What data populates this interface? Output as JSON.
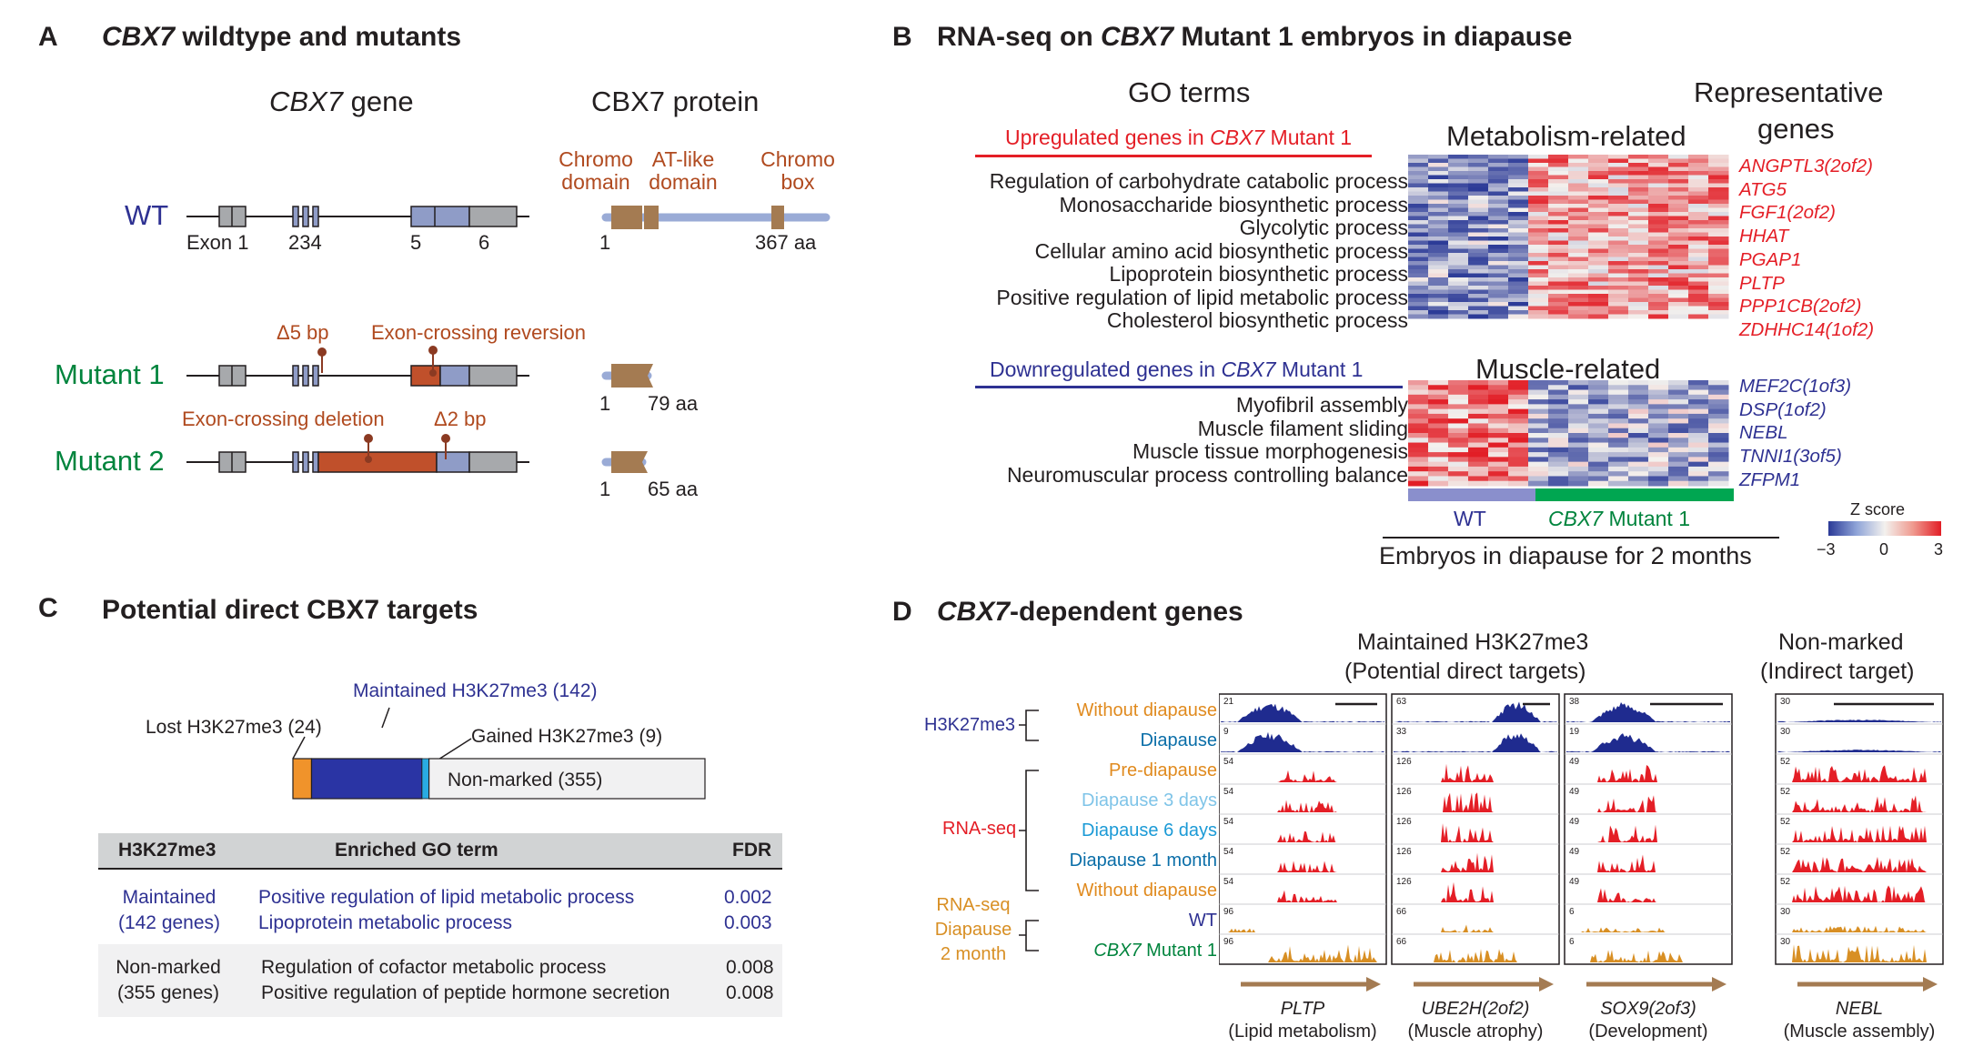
{
  "colors": {
    "red": "#e41e26",
    "blue": "#2e3192",
    "green": "#00843d",
    "brown": "#b04a1f",
    "exon_gray": "#a7a9ac",
    "exon_blue": "#8f9cc7",
    "protein_line": "#9aabd6",
    "domain": "#a47b52",
    "orange": "#e08a1e",
    "cyan": "#1b9ad6",
    "light_blue": "#7fc4e8",
    "navy": "#1f2b8f",
    "track_orange": "#d88f24"
  },
  "panelA": {
    "letter": "A",
    "title_italic": "CBX7",
    "title_rest": " wildtype and mutants",
    "gene_header_italic": "CBX7",
    "gene_header_rest": " gene",
    "protein_header": "CBX7 protein",
    "domains": [
      "Chromo\ndomain",
      "AT-like\ndomain",
      "Chromo\nbox"
    ],
    "wt_label": "WT",
    "exon_labels": [
      "Exon 1",
      "234",
      "5",
      "6"
    ],
    "wt_protein_start": "1",
    "wt_protein_end": "367 aa",
    "mut1_label": "Mutant 1",
    "mut1_del": "Δ5 bp",
    "mut1_rev": "Exon-crossing reversion",
    "mut1_start": "1",
    "mut1_end": "79 aa",
    "mut2_label": "Mutant 2",
    "mut2_del": "Exon-crossing deletion",
    "mut2_del2": "Δ2 bp",
    "mut2_start": "1",
    "mut2_end": "65 aa"
  },
  "panelB": {
    "letter": "B",
    "title_pre": "RNA-seq on ",
    "title_italic": "CBX7",
    "title_post": " Mutant 1 embryos in diapause",
    "go_header": "GO terms",
    "rep_header_1": "Representative",
    "rep_header_2": "genes",
    "up_label_pre": "Upregulated genes in ",
    "up_label_italic": "CBX7",
    "up_label_post": " Mutant 1",
    "down_label_pre": "Downregulated genes in ",
    "down_label_italic": "CBX7",
    "down_label_post": " Mutant 1",
    "metab_header": "Metabolism-related",
    "muscle_header": "Muscle-related",
    "up_terms": [
      "Regulation of carbohydrate catabolic process",
      "Monosaccharide biosynthetic process",
      "Glycolytic process",
      "Cellular amino acid biosynthetic process",
      "Lipoprotein biosynthetic process",
      "Positive regulation of lipid metabolic process",
      "Cholesterol biosynthetic process"
    ],
    "down_terms": [
      "Myofibril assembly",
      "Muscle filament sliding",
      "Muscle tissue morphogenesis",
      "Neuromuscular process controlling balance"
    ],
    "up_genes": [
      "ANGPTL3(2of2)",
      "ATG5",
      "FGF1(2of2)",
      "HHAT",
      "PGAP1",
      "PLTP",
      "PPP1CB(2of2)",
      "ZDHHC14(1of2)"
    ],
    "down_genes": [
      "MEF2C(1of3)",
      "DSP(1of2)",
      "NEBL",
      "TNNI1(3of5)",
      "ZFPM1"
    ],
    "wt_group": "WT",
    "mut_group_italic": "CBX7",
    "mut_group_rest": " Mutant 1",
    "embryo_label": "Embryos in diapause for 2 months",
    "zscore_label": "Z score",
    "zscore_ticks": [
      "−3",
      "0",
      "3"
    ]
  },
  "panelC": {
    "letter": "C",
    "title": "Potential direct CBX7 targets",
    "bar": {
      "maintained_label": "Maintained H3K27me3 (142)",
      "lost_label": "Lost H3K27me3 (24)",
      "gained_label": "Gained H3K27me3 (9)",
      "nonmarked_label": "Non-marked (355)",
      "counts": {
        "lost": 24,
        "maintained": 142,
        "gained": 9,
        "nonmarked": 355
      }
    },
    "table": {
      "headers": [
        "H3K27me3",
        "Enriched GO term",
        "FDR"
      ],
      "rows": [
        {
          "group": [
            "Maintained",
            "(142 genes)"
          ],
          "terms": [
            "Positive regulation of lipid metabolic process",
            "Lipoprotein metabolic process"
          ],
          "fdr": [
            "0.002",
            "0.003"
          ]
        },
        {
          "group": [
            "Non-marked",
            "(355 genes)"
          ],
          "terms": [
            "Regulation of cofactor metabolic process",
            "Positive regulation of peptide hormone secretion"
          ],
          "fdr": [
            "0.008",
            "0.008"
          ]
        }
      ]
    }
  },
  "panelD": {
    "letter": "D",
    "title_italic": "CBX7",
    "title_rest": "-dependent genes",
    "maintained_header_1": "Maintained H3K27me3",
    "maintained_header_2": "(Potential direct targets)",
    "nonmarked_header_1": "Non-marked",
    "nonmarked_header_2": "(Indirect target)",
    "h3k_label": "H3K27me3",
    "rnaseq_label": "RNA-seq",
    "rnaseq2_label": [
      "RNA-seq",
      "Diapause",
      "2 month"
    ],
    "track_labels": [
      "Without diapause",
      "Diapause",
      "Pre-diapause",
      "Diapause 3 days",
      "Diapause 6 days",
      "Diapause 1 month",
      "Without diapause",
      "WT",
      "Mutant 1"
    ],
    "track_label_mut_italic": "CBX7",
    "genes": [
      {
        "name": "PLTP",
        "desc": "(Lipid metabolism)",
        "scales": [
          "21",
          "9",
          "54",
          "54",
          "54",
          "54",
          "54",
          "96",
          "96"
        ]
      },
      {
        "name": "UBE2H(2of2)",
        "desc": "(Muscle atrophy)",
        "scales": [
          "63",
          "33",
          "126",
          "126",
          "126",
          "126",
          "126",
          "66",
          "66"
        ]
      },
      {
        "name": "SOX9(2of3)",
        "desc": "(Development)",
        "scales": [
          "38",
          "19",
          "49",
          "49",
          "49",
          "49",
          "49",
          "6",
          "6"
        ]
      },
      {
        "name": "NEBL",
        "desc": "(Muscle assembly)",
        "scales": [
          "30",
          "30",
          "52",
          "52",
          "52",
          "52",
          "52",
          "30",
          "30"
        ]
      }
    ]
  }
}
